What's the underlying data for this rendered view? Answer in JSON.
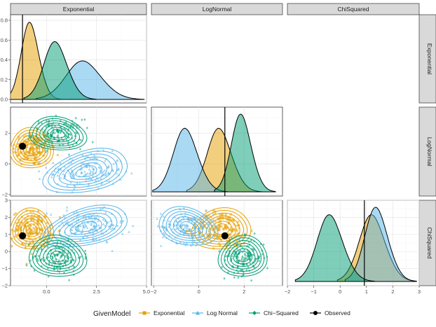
{
  "chart_data": {
    "type": "scatter",
    "facet_names": [
      "Exponential",
      "LogNormal",
      "ChiSquared"
    ],
    "axis_ranges": {
      "Exponential": [
        -1.8,
        5.0
      ],
      "LogNormal": [
        -2.1,
        3.7
      ],
      "ChiSquared": [
        -2.0,
        3.0
      ]
    },
    "density_y_ticks": [
      "0.0",
      "0.2",
      "0.4",
      "0.6",
      "0.8"
    ],
    "x_ticks": {
      "Exponential": [
        "0.0",
        "2.5",
        "5.0"
      ],
      "LogNormal": [
        "−2",
        "0",
        "2"
      ],
      "ChiSquared": [
        "−2",
        "−1",
        "0",
        "1",
        "2",
        "3"
      ]
    },
    "y_ticks": {
      "LogNormal": [
        "−2",
        "0",
        "2"
      ],
      "ChiSquared": [
        "−2",
        "−1",
        "0",
        "1",
        "2",
        "3"
      ]
    },
    "observed": {
      "Exponential": -1.2,
      "LogNormal": 1.15,
      "ChiSquared": 0.92
    },
    "models": [
      {
        "name": "Exponential",
        "color": "#E69F00",
        "mean": {
          "Exponential": -0.75,
          "LogNormal": 1.0,
          "ChiSquared": 1.3
        },
        "sd": {
          "Exponential": 0.45,
          "LogNormal": 0.55,
          "ChiSquared": 0.5
        }
      },
      {
        "name": "Log Normal",
        "color": "#56B4E9",
        "mean": {
          "Exponential": 2.0,
          "LogNormal": -0.5,
          "ChiSquared": 1.45
        },
        "sd": {
          "Exponential": 0.9,
          "LogNormal": 0.55,
          "ChiSquared": 0.45
        }
      },
      {
        "name": "Chi−Squared",
        "color": "#009E73",
        "mean": {
          "Exponential": 0.55,
          "LogNormal": 1.95,
          "ChiSquared": -0.3
        },
        "sd": {
          "Exponential": 0.6,
          "LogNormal": 0.45,
          "ChiSquared": 0.5
        }
      }
    ],
    "grid": true,
    "legend_position": "bottom"
  },
  "legend": {
    "title": "GivenModel",
    "items": [
      "Exponential",
      "Log Normal",
      "Chi−Squared",
      "Observed"
    ]
  }
}
